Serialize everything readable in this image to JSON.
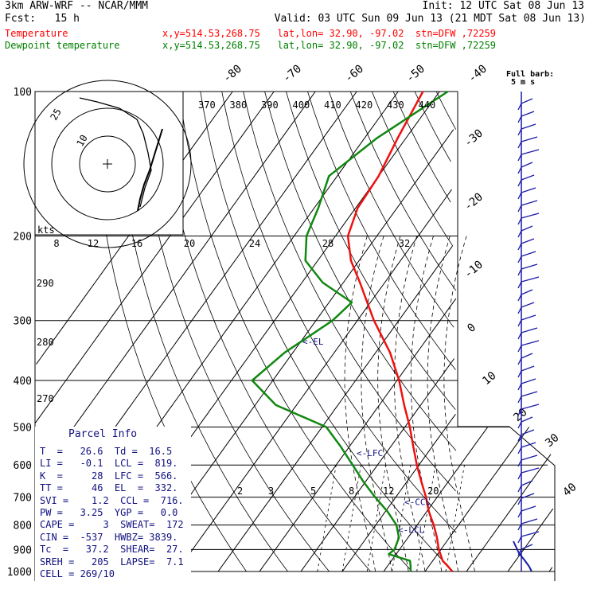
{
  "header": {
    "model": "3km ARW-WRF -- NCAR/MMM",
    "init": "Init: 12 UTC Sat 08 Jun 13",
    "fcst": "Fcst:   15 h",
    "valid": "Valid: 03 UTC Sun 09 Jun 13 (21 MDT Sat 08 Jun 13)",
    "legend": [
      {
        "label": "Temperature",
        "info": "x,y=514.53,268.75   lat,lon= 32.90, -97.02  stn=DFW ,72259",
        "color": "#ff0000"
      },
      {
        "label": "Dewpoint temperature",
        "info": "x,y=514.53,268.75   lat,lon= 32.90, -97.02  stn=DFW ,72259",
        "color": "#008000"
      }
    ]
  },
  "colors": {
    "temperature": "#ee1111",
    "dewpoint": "#118811",
    "wind_barb": "#1a1aaa",
    "parcel_text": "#101080",
    "background": "#ffffff"
  },
  "chart_data": {
    "type": "skew-t",
    "pressure_levels": [
      100,
      200,
      300,
      400,
      500,
      600,
      700,
      800,
      900,
      1000
    ],
    "pressure_labels": [
      "100",
      "200",
      "300",
      "400",
      "500",
      "600",
      "700",
      "800",
      "900",
      "1000"
    ],
    "top_temperature_labels": [
      "-80",
      "-70",
      "-60",
      "-50",
      "-40"
    ],
    "right_temperature_labels": [
      "-30",
      "-20",
      "-10",
      "0",
      "10",
      "20",
      "30",
      "40"
    ],
    "theta_labels_top": [
      "370",
      "380",
      "390",
      "400",
      "410",
      "420",
      "430",
      "440"
    ],
    "theta_labels_left": [
      "290",
      "280",
      "270"
    ],
    "mixing_ratio_labels": [
      "2",
      "3",
      "5",
      "8",
      "12",
      "20"
    ],
    "speed_axis": {
      "label": "kts",
      "ticks": [
        "8",
        "12",
        "16",
        "20",
        "24",
        "28",
        "32"
      ]
    },
    "hodograph_rings": [
      "10",
      "25"
    ],
    "wind_legend": {
      "title": "Full barb:",
      "value": "5 m s"
    },
    "levels_marked": [
      "EL",
      "LFC",
      "CCL",
      "LCL"
    ],
    "temperature": [
      {
        "p": 1000,
        "t": 26.6
      },
      {
        "p": 975,
        "t": 24.6
      },
      {
        "p": 950,
        "t": 22.4
      },
      {
        "p": 900,
        "t": 19.5
      },
      {
        "p": 850,
        "t": 17.0
      },
      {
        "p": 800,
        "t": 14.0
      },
      {
        "p": 750,
        "t": 10.5
      },
      {
        "p": 700,
        "t": 7.3
      },
      {
        "p": 650,
        "t": 3.5
      },
      {
        "p": 600,
        "t": -0.5
      },
      {
        "p": 550,
        "t": -4.5
      },
      {
        "p": 500,
        "t": -8.8
      },
      {
        "p": 450,
        "t": -14.0
      },
      {
        "p": 400,
        "t": -19.5
      },
      {
        "p": 350,
        "t": -26.5
      },
      {
        "p": 300,
        "t": -36.0
      },
      {
        "p": 250,
        "t": -46.0
      },
      {
        "p": 225,
        "t": -52.0
      },
      {
        "p": 200,
        "t": -57.0
      },
      {
        "p": 175,
        "t": -59.5
      },
      {
        "p": 150,
        "t": -60.0
      },
      {
        "p": 125,
        "t": -62.0
      },
      {
        "p": 100,
        "t": -64.0
      }
    ],
    "dewpoint": [
      {
        "p": 1000,
        "t": 16.5
      },
      {
        "p": 975,
        "t": 15.6
      },
      {
        "p": 950,
        "t": 14.5
      },
      {
        "p": 920,
        "t": 8.2
      },
      {
        "p": 900,
        "t": 8.8
      },
      {
        "p": 850,
        "t": 7.8
      },
      {
        "p": 800,
        "t": 5.0
      },
      {
        "p": 750,
        "t": 0.5
      },
      {
        "p": 700,
        "t": -5.0
      },
      {
        "p": 650,
        "t": -10.5
      },
      {
        "p": 600,
        "t": -16.0
      },
      {
        "p": 550,
        "t": -22.0
      },
      {
        "p": 500,
        "t": -29.0
      },
      {
        "p": 450,
        "t": -45.0
      },
      {
        "p": 400,
        "t": -55.0
      },
      {
        "p": 350,
        "t": -52.0
      },
      {
        "p": 300,
        "t": -46.0
      },
      {
        "p": 275,
        "t": -44.5
      },
      {
        "p": 250,
        "t": -55.0
      },
      {
        "p": 225,
        "t": -63.0
      },
      {
        "p": 200,
        "t": -67.0
      },
      {
        "p": 175,
        "t": -69.0
      },
      {
        "p": 150,
        "t": -72.0
      },
      {
        "p": 125,
        "t": -67.0
      },
      {
        "p": 100,
        "t": -58.0
      }
    ],
    "hodograph": [
      {
        "u": 3,
        "v": 12
      },
      {
        "u": 4,
        "v": 16
      },
      {
        "u": 6,
        "v": 24
      },
      {
        "u": 7,
        "v": 30
      },
      {
        "u": 6,
        "v": 38
      },
      {
        "u": 5,
        "v": 44
      }
    ],
    "hodograph_upper": [
      {
        "u": 6,
        "v": 30
      },
      {
        "u": 4,
        "v": 40
      },
      {
        "u": -2,
        "v": 52
      },
      {
        "u": -6,
        "v": 62
      },
      {
        "u": -4,
        "v": 68
      }
    ]
  },
  "parcel": {
    "title": "Parcel Info",
    "rows": [
      "T  =   26.6  Td =  16.5",
      "LI =   -0.1  LCL =  819.",
      "K  =     28  LFC =  566.",
      "TT =     46  EL  =  332.",
      "SVI =    1.2  CCL =  716.",
      "PW =   3.25  YGP =   0.0",
      "CAPE =     3  SWEAT=  172",
      "CIN =  -537  HWBZ= 3839.",
      "Tc  =   37.2  SHEAR=  27.",
      "SREH =   205  LAPSE=  7.1",
      "CELL = 269/10"
    ]
  }
}
